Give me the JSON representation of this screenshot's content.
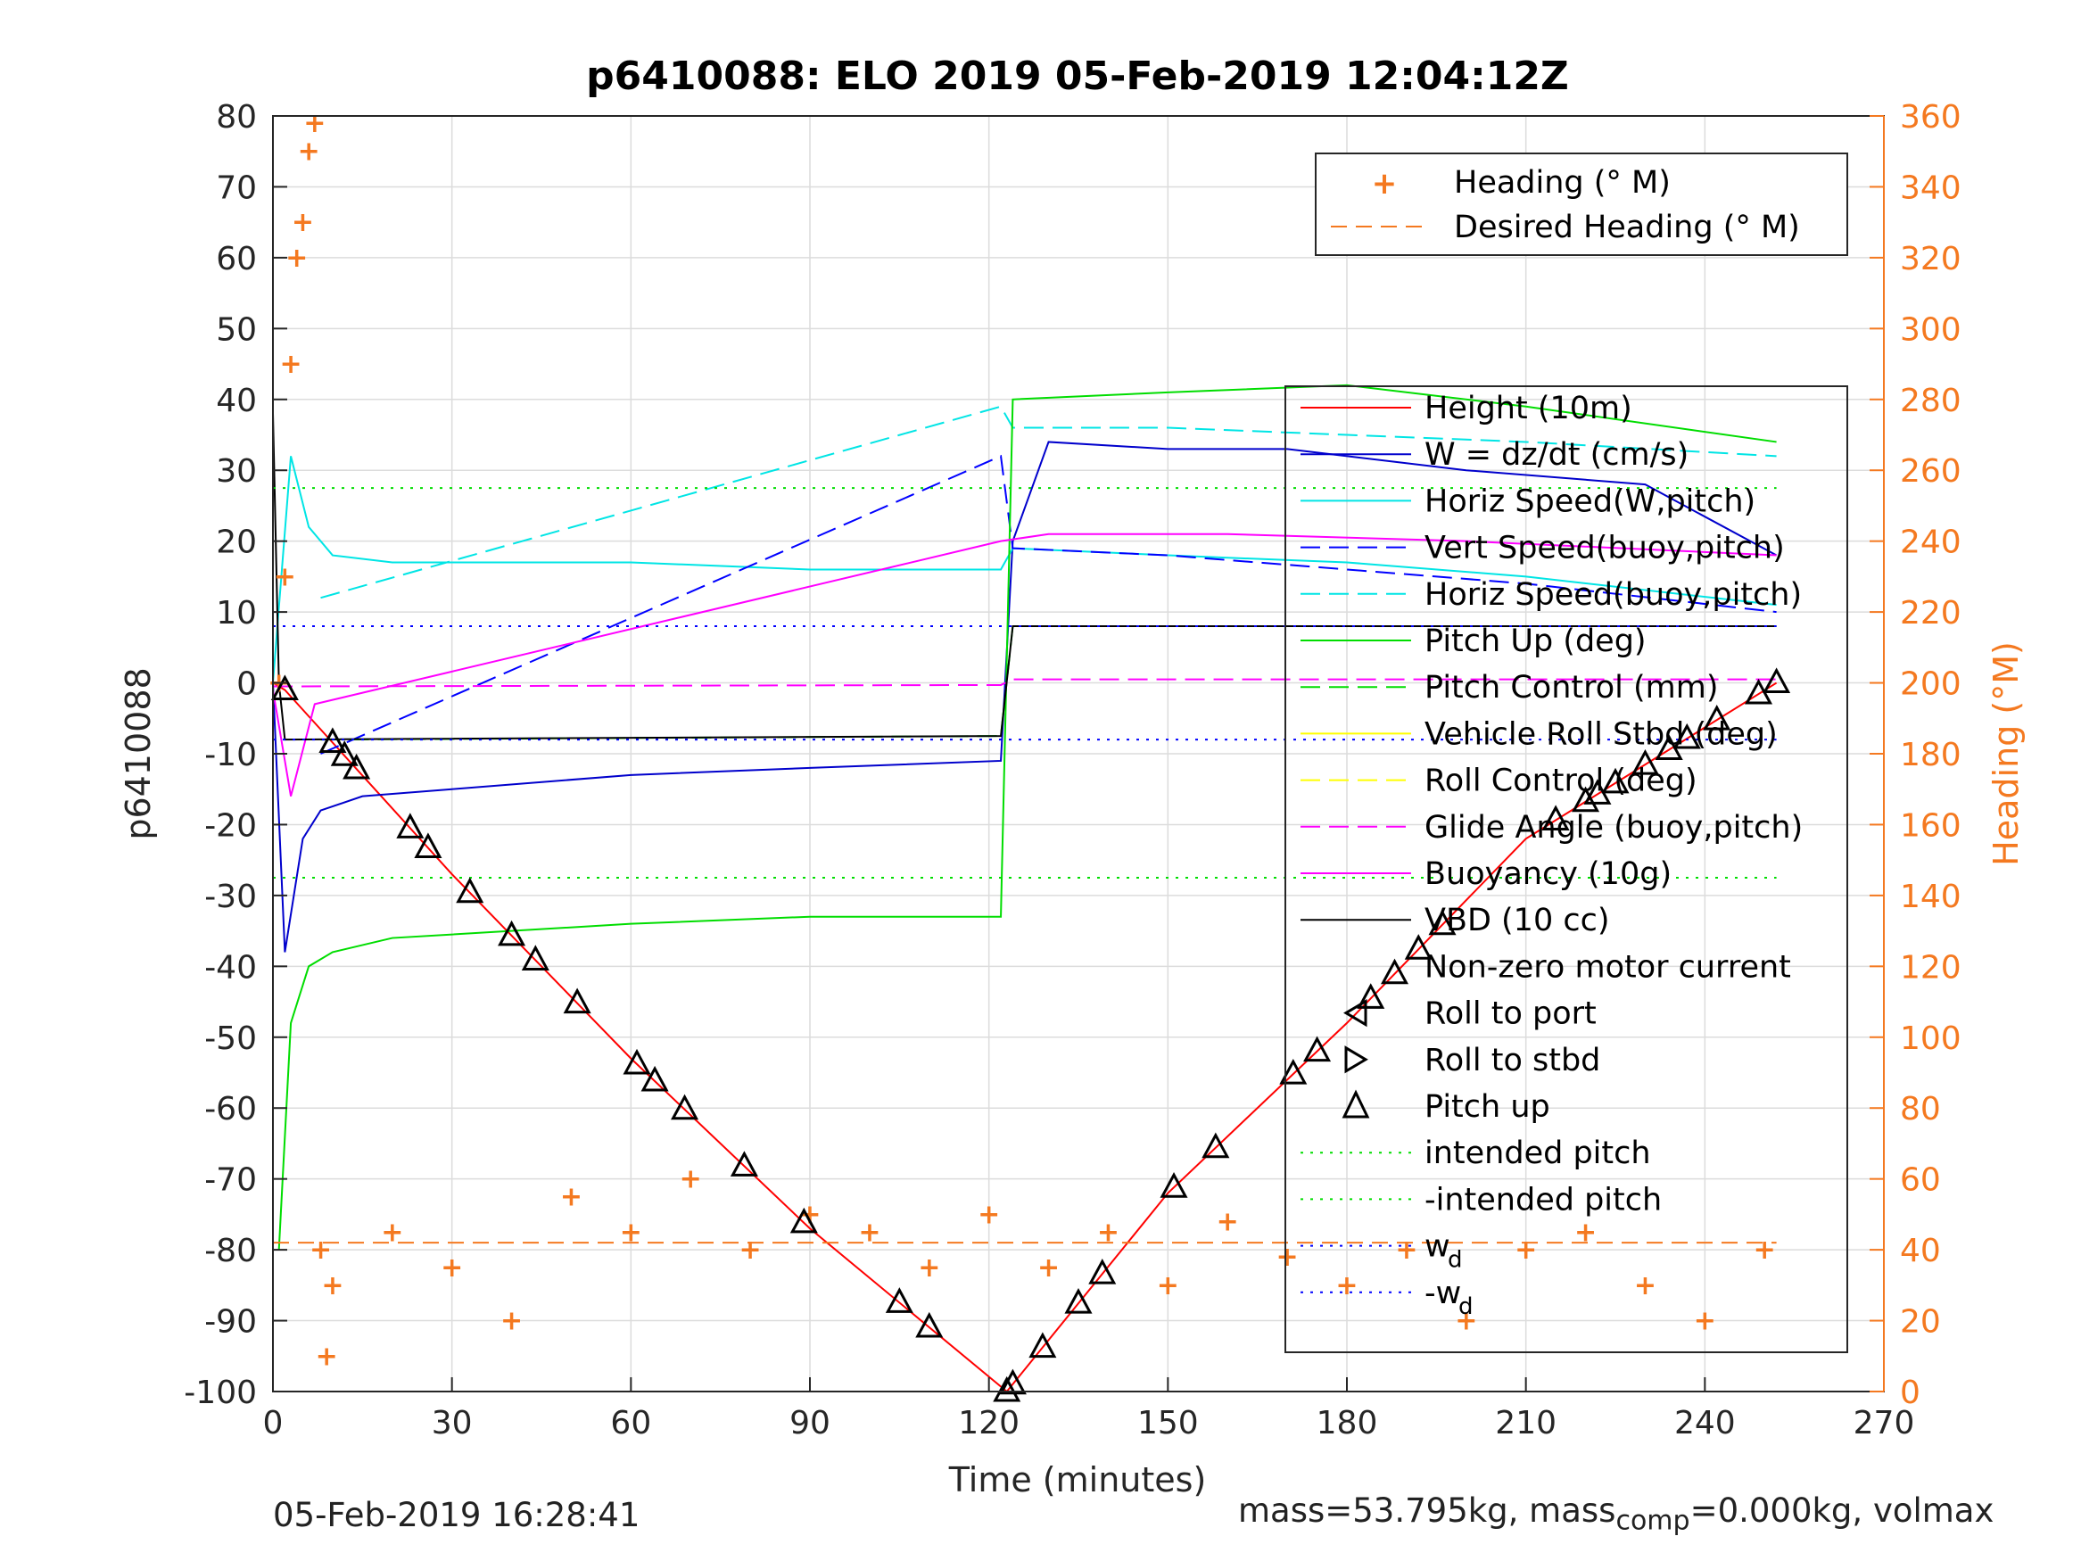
{
  "chart_data": {
    "type": "line",
    "title": "p6410088: ELO 2019 05-Feb-2019 12:04:12Z",
    "xlabel": "Time (minutes)",
    "ylabel": "p6410088",
    "y2label": "Heading (°M)",
    "xlim": [
      0,
      270
    ],
    "ylim": [
      -100,
      80
    ],
    "y2lim": [
      0,
      360
    ],
    "xticks": [
      "0",
      "30",
      "60",
      "90",
      "120",
      "150",
      "180",
      "210",
      "240",
      "270"
    ],
    "yticks": [
      "80",
      "70",
      "60",
      "50",
      "40",
      "30",
      "20",
      "10",
      "0",
      "-10",
      "-20",
      "-30",
      "-40",
      "-50",
      "-60",
      "-70",
      "-80",
      "-90",
      "-100"
    ],
    "y2ticks": [
      "360",
      "340",
      "320",
      "300",
      "280",
      "260",
      "240",
      "220",
      "200",
      "180",
      "160",
      "140",
      "120",
      "100",
      "80",
      "60",
      "40",
      "20",
      "0"
    ],
    "grid": true,
    "colors": {
      "height": "#ff0000",
      "w": "#0000cc",
      "horiz_speed": "#00e5e5",
      "vert_speed": "#0000ff",
      "pitch_up": "#00dd00",
      "roll": "#ffff00",
      "glide": "#ff00ff",
      "buoyancy": "#ff00ff",
      "vbd": "#000000",
      "heading": "#f47920",
      "intended": "#00dd00",
      "wd": "#0000ff"
    },
    "legend_top": {
      "placement": "top-right",
      "entries": [
        "Heading (° M)",
        "Desired Heading (° M)"
      ]
    },
    "legend_main": {
      "placement": "right",
      "entries": [
        "Height (10m)",
        "W = dz/dt (cm/s)",
        "Horiz Speed(W,pitch)",
        "Vert Speed(buoy,pitch)",
        "Horiz Speed(buoy,pitch)",
        "Pitch Up (deg)",
        "Pitch Control (mm)",
        "Vehicle Roll Stbd (deg)",
        "Roll Control (deg)",
        "Glide Angle (buoy,pitch)",
        "Buoyancy (10g)",
        "VBD (10 cc)",
        "Non-zero motor current",
        "Roll to port",
        "Roll to stbd",
        "Pitch up",
        "intended pitch",
        "-intended pitch"
      ],
      "wd_label": "w",
      "wd_sub": "d",
      "neg_wd_label": "-w",
      "neg_wd_sub": "d"
    },
    "series": [
      {
        "name": "Height (10m)",
        "x": [
          0,
          2,
          30,
          60,
          90,
          123,
          150,
          180,
          210,
          252
        ],
        "y": [
          0,
          -1,
          -27,
          -53,
          -77,
          -100,
          -72,
          -48,
          -22,
          0
        ]
      },
      {
        "name": "W = dz/dt (cm/s)",
        "x": [
          0,
          2,
          5,
          8,
          15,
          30,
          60,
          90,
          122,
          124,
          130,
          150,
          170,
          200,
          230,
          252
        ],
        "y": [
          0,
          -38,
          -22,
          -18,
          -16,
          -15,
          -13,
          -12,
          -11,
          20,
          34,
          33,
          33,
          30,
          28,
          18
        ]
      },
      {
        "name": "Horiz Speed(W,pitch)",
        "x": [
          0,
          3,
          6,
          10,
          20,
          60,
          90,
          122,
          124,
          150,
          180,
          210,
          252
        ],
        "y": [
          0,
          32,
          22,
          18,
          17,
          17,
          16,
          16,
          19,
          18,
          17,
          15,
          11
        ]
      },
      {
        "name": "Vert Speed(buoy,pitch)",
        "x": [
          8,
          122,
          124,
          150,
          180,
          210,
          252
        ],
        "y": [
          -10,
          32,
          19,
          18,
          16,
          14,
          10
        ]
      },
      {
        "name": "Horiz Speed(buoy,pitch)",
        "x": [
          8,
          122,
          124,
          150,
          180,
          210,
          252
        ],
        "y": [
          12,
          39,
          36,
          36,
          35,
          34,
          32
        ]
      },
      {
        "name": "Pitch Up (deg)",
        "x": [
          1,
          3,
          6,
          10,
          20,
          60,
          90,
          122,
          124,
          150,
          180,
          210,
          252
        ],
        "y": [
          -80,
          -48,
          -40,
          -38,
          -36,
          -34,
          -33,
          -33,
          40,
          41,
          42,
          39,
          34
        ]
      },
      {
        "name": "Pitch Control (mm)",
        "x": [
          8,
          122,
          124,
          252
        ],
        "y": [
          -8,
          -7.5,
          8,
          8
        ]
      },
      {
        "name": "Glide Angle (buoy,pitch)",
        "x": [
          0,
          122,
          124,
          252
        ],
        "y": [
          -0.5,
          -0.3,
          0.5,
          0.5
        ]
      },
      {
        "name": "Buoyancy (10g)",
        "x": [
          0,
          3,
          7,
          122,
          130,
          160,
          200,
          252
        ],
        "y": [
          -1,
          -16,
          -3,
          20,
          21,
          21,
          20,
          18
        ]
      },
      {
        "name": "VBD (10 cc)",
        "x": [
          0,
          1,
          2,
          122,
          124,
          200,
          252
        ],
        "y": [
          38,
          0,
          -8,
          -7.5,
          8,
          8,
          8
        ]
      },
      {
        "name": "intended pitch",
        "x": [
          0,
          252
        ],
        "y": [
          27.5,
          27.5
        ]
      },
      {
        "name": "-intended pitch",
        "x": [
          0,
          252
        ],
        "y": [
          -27.5,
          -27.5
        ]
      },
      {
        "name": "w",
        "x": [
          0,
          252
        ],
        "y": [
          8,
          8
        ]
      },
      {
        "name": "-w",
        "x": [
          0,
          252
        ],
        "y": [
          -8,
          -8
        ]
      },
      {
        "name": "Desired Heading (° M)",
        "x": [
          0,
          252
        ],
        "y2": [
          42,
          42
        ]
      },
      {
        "name": "Heading (° M)",
        "x": [
          1,
          2,
          3,
          4,
          5,
          6,
          7,
          8,
          9,
          10,
          20,
          30,
          40,
          50,
          60,
          70,
          80,
          90,
          100,
          110,
          120,
          130,
          140,
          150,
          160,
          170,
          180,
          190,
          200,
          210,
          220,
          230,
          240,
          250
        ],
        "y2": [
          200,
          230,
          290,
          320,
          330,
          350,
          358,
          40,
          10,
          30,
          45,
          35,
          20,
          55,
          45,
          60,
          40,
          50,
          45,
          35,
          50,
          35,
          45,
          30,
          48,
          38,
          30,
          40,
          20,
          40,
          45,
          30,
          20,
          40
        ]
      }
    ],
    "markers": {
      "pitch_up_marker_x": [
        2,
        10,
        12,
        14,
        23,
        26,
        33,
        40,
        44,
        51,
        61,
        64,
        69,
        79,
        89,
        105,
        110,
        123,
        124,
        129,
        135,
        139,
        151,
        158,
        171,
        175,
        184,
        188,
        192,
        196,
        215,
        220,
        222,
        225,
        230,
        234,
        237,
        242,
        249,
        252
      ]
    }
  },
  "footer": {
    "timestamp": "05-Feb-2019 16:28:41",
    "mass_text": "mass=53.795kg, mass",
    "mass_sub": "comp",
    "mass_rest": "=0.000kg, volmax"
  }
}
